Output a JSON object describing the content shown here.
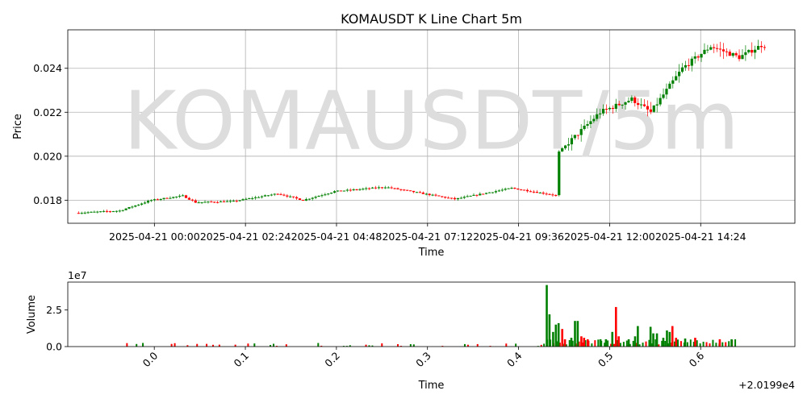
{
  "chart_data": [
    {
      "type": "candlestick",
      "title": "KOMAUSDT K Line Chart 5m",
      "watermark": "KOMAUSDT/5m",
      "xlabel": "Time",
      "ylabel": "Price",
      "ylim": [
        0.01695,
        0.02575
      ],
      "yticks": [
        0.018,
        0.02,
        0.022,
        0.024
      ],
      "ytick_labels": [
        "0.018",
        "0.020",
        "0.022",
        "0.024"
      ],
      "xticks": [
        "2025-04-21 00:00",
        "2025-04-21 02:24",
        "2025-04-21 04:48",
        "2025-04-21 07:12",
        "2025-04-21 09:36",
        "2025-04-21 12:00",
        "2025-04-21 14:24"
      ],
      "xlim": [
        "2025-04-20 21:43",
        "2025-04-21 16:53"
      ],
      "interval_minutes": 5,
      "first_candle": "2025-04-20 22:00",
      "grid": true,
      "up_color": "#008000",
      "down_color": "#ff0000",
      "series_segments": [
        {
          "from": "2025-04-20 22:00",
          "to": "2025-04-20 23:10",
          "start": 0.01742,
          "end": 0.01752
        },
        {
          "from": "2025-04-20 23:10",
          "to": "2025-04-21 00:00",
          "start": 0.01752,
          "end": 0.018
        },
        {
          "from": "2025-04-21 00:00",
          "to": "2025-04-21 00:50",
          "start": 0.018,
          "end": 0.0182
        },
        {
          "from": "2025-04-21 00:50",
          "to": "2025-04-21 01:10",
          "start": 0.0182,
          "end": 0.0179
        },
        {
          "from": "2025-04-21 01:10",
          "to": "2025-04-21 02:10",
          "start": 0.0179,
          "end": 0.01795
        },
        {
          "from": "2025-04-21 02:10",
          "to": "2025-04-21 03:20",
          "start": 0.01795,
          "end": 0.0183
        },
        {
          "from": "2025-04-21 03:20",
          "to": "2025-04-21 04:00",
          "start": 0.0183,
          "end": 0.018
        },
        {
          "from": "2025-04-21 04:00",
          "to": "2025-04-21 04:50",
          "start": 0.018,
          "end": 0.0184
        },
        {
          "from": "2025-04-21 04:50",
          "to": "2025-04-21 06:10",
          "start": 0.0184,
          "end": 0.0186
        },
        {
          "from": "2025-04-21 06:10",
          "to": "2025-04-21 07:30",
          "start": 0.0186,
          "end": 0.0182
        },
        {
          "from": "2025-04-21 07:30",
          "to": "2025-04-21 08:00",
          "start": 0.0182,
          "end": 0.01805
        },
        {
          "from": "2025-04-21 08:00",
          "to": "2025-04-21 09:30",
          "start": 0.01805,
          "end": 0.01855
        },
        {
          "from": "2025-04-21 09:30",
          "to": "2025-04-21 10:40",
          "start": 0.01855,
          "end": 0.01822
        },
        {
          "from": "2025-04-21 10:40",
          "to": "2025-04-21 10:45",
          "start": 0.01822,
          "end": 0.0202
        },
        {
          "from": "2025-04-21 10:45",
          "to": "2025-04-21 11:50",
          "start": 0.0202,
          "end": 0.022
        },
        {
          "from": "2025-04-21 11:50",
          "to": "2025-04-21 12:40",
          "start": 0.022,
          "end": 0.0226
        },
        {
          "from": "2025-04-21 12:40",
          "to": "2025-04-21 13:10",
          "start": 0.0226,
          "end": 0.022
        },
        {
          "from": "2025-04-21 13:10",
          "to": "2025-04-21 14:00",
          "start": 0.022,
          "end": 0.024
        },
        {
          "from": "2025-04-21 14:00",
          "to": "2025-04-21 14:45",
          "start": 0.024,
          "end": 0.025
        },
        {
          "from": "2025-04-21 14:45",
          "to": "2025-04-21 15:30",
          "start": 0.025,
          "end": 0.0245
        },
        {
          "from": "2025-04-21 15:30",
          "to": "2025-04-21 16:05",
          "start": 0.0245,
          "end": 0.02505
        }
      ]
    },
    {
      "type": "bar",
      "xlabel": "Time",
      "ylabel": "Volume",
      "offset_label": "1e7",
      "ylim": [
        0,
        4.4
      ],
      "yticks": [
        0,
        2.5
      ],
      "ytick_labels": [
        "0.0",
        "2.5"
      ],
      "x_offset_label": "+2.0199e4",
      "xlim": [
        20198.905,
        20199.7035
      ],
      "xticks": [
        0.0,
        0.1,
        0.2,
        0.3,
        0.4,
        0.5,
        0.6
      ],
      "xtick_labels": [
        "0.0",
        "0.1",
        "0.2",
        "0.3",
        "0.4",
        "0.5",
        "0.6"
      ],
      "grid": false,
      "volume_spikes": [
        {
          "x": 0.431,
          "value": 4.2,
          "color": "#008000"
        },
        {
          "x": 0.434,
          "value": 2.2,
          "color": "#008000"
        },
        {
          "x": 0.438,
          "value": 1.0,
          "color": "#008000"
        },
        {
          "x": 0.441,
          "value": 1.5,
          "color": "#008000"
        },
        {
          "x": 0.444,
          "value": 1.6,
          "color": "#008000"
        },
        {
          "x": 0.448,
          "value": 1.2,
          "color": "#ff0000"
        },
        {
          "x": 0.451,
          "value": 0.5,
          "color": "#ff0000"
        },
        {
          "x": 0.458,
          "value": 0.6,
          "color": "#008000"
        },
        {
          "x": 0.462,
          "value": 1.75,
          "color": "#008000"
        },
        {
          "x": 0.465,
          "value": 1.75,
          "color": "#008000"
        },
        {
          "x": 0.469,
          "value": 0.7,
          "color": "#ff0000"
        },
        {
          "x": 0.472,
          "value": 0.6,
          "color": "#ff0000"
        },
        {
          "x": 0.476,
          "value": 0.5,
          "color": "#ff0000"
        },
        {
          "x": 0.49,
          "value": 0.5,
          "color": "#008000"
        },
        {
          "x": 0.496,
          "value": 0.5,
          "color": "#008000"
        },
        {
          "x": 0.503,
          "value": 1.0,
          "color": "#008000"
        },
        {
          "x": 0.507,
          "value": 2.7,
          "color": "#ff0000"
        },
        {
          "x": 0.51,
          "value": 0.7,
          "color": "#ff0000"
        },
        {
          "x": 0.521,
          "value": 0.5,
          "color": "#008000"
        },
        {
          "x": 0.528,
          "value": 0.7,
          "color": "#008000"
        },
        {
          "x": 0.531,
          "value": 1.4,
          "color": "#008000"
        },
        {
          "x": 0.545,
          "value": 1.35,
          "color": "#008000"
        },
        {
          "x": 0.548,
          "value": 0.9,
          "color": "#008000"
        },
        {
          "x": 0.552,
          "value": 0.9,
          "color": "#008000"
        },
        {
          "x": 0.559,
          "value": 0.6,
          "color": "#008000"
        },
        {
          "x": 0.563,
          "value": 1.1,
          "color": "#008000"
        },
        {
          "x": 0.566,
          "value": 1.0,
          "color": "#008000"
        },
        {
          "x": 0.569,
          "value": 1.4,
          "color": "#ff0000"
        },
        {
          "x": 0.573,
          "value": 0.6,
          "color": "#ff0000"
        },
        {
          "x": 0.583,
          "value": 0.55,
          "color": "#008000"
        },
        {
          "x": 0.594,
          "value": 0.6,
          "color": "#ff0000"
        },
        {
          "x": 0.621,
          "value": 0.5,
          "color": "#ff0000"
        },
        {
          "x": 0.634,
          "value": 0.5,
          "color": "#008000"
        }
      ]
    }
  ]
}
